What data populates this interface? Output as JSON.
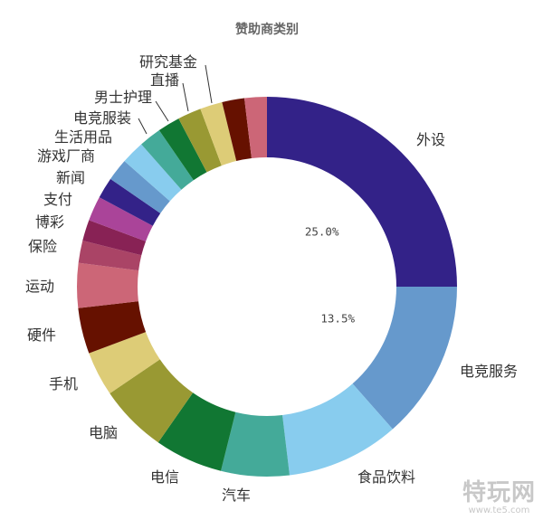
{
  "chart_data": {
    "type": "pie",
    "donut": true,
    "title": "赞助商类别",
    "start": "top",
    "direction": "clockwise",
    "legend": "none",
    "slices": [
      {
        "label": "外设",
        "value": 25.0,
        "color": "#332288",
        "value_label": "25.0%"
      },
      {
        "label": "电竞服务",
        "value": 13.5,
        "color": "#6699cc",
        "value_label": "13.5%"
      },
      {
        "label": "食品饮料",
        "value": 9.6,
        "color": "#88ccee"
      },
      {
        "label": "汽车",
        "value": 5.8,
        "color": "#44aa99"
      },
      {
        "label": "电信",
        "value": 5.8,
        "color": "#117733"
      },
      {
        "label": "电脑",
        "value": 5.8,
        "color": "#999933"
      },
      {
        "label": "手机",
        "value": 3.8,
        "color": "#ddcc77"
      },
      {
        "label": "硬件",
        "value": 3.9,
        "color": "#661100"
      },
      {
        "label": "运动",
        "value": 3.8,
        "color": "#cc6677"
      },
      {
        "label": "保险",
        "value": 1.9,
        "color": "#aa4466"
      },
      {
        "label": "博彩",
        "value": 1.8,
        "color": "#882255"
      },
      {
        "label": "支付",
        "value": 2.1,
        "color": "#aa4499"
      },
      {
        "label": "新闻",
        "value": 1.8,
        "color": "#332288"
      },
      {
        "label": "游戏厂商",
        "value": 1.9,
        "color": "#6699cc"
      },
      {
        "label": "生活用品",
        "value": 2.0,
        "color": "#88ccee"
      },
      {
        "label": "电竞服装",
        "value": 1.9,
        "color": "#44aa99"
      },
      {
        "label": "男士护理",
        "value": 1.9,
        "color": "#117733"
      },
      {
        "label": "直播",
        "value": 2.0,
        "color": "#999933"
      },
      {
        "label": "研究基金",
        "value": 1.9,
        "color": "#ddcc77"
      },
      {
        "label": "",
        "value": 1.9,
        "color": "#661100"
      },
      {
        "label": "",
        "value": 1.9,
        "color": "#cc6677"
      }
    ]
  },
  "watermark": {
    "logo_text": "特玩网",
    "url_text": "www.te5.com"
  }
}
